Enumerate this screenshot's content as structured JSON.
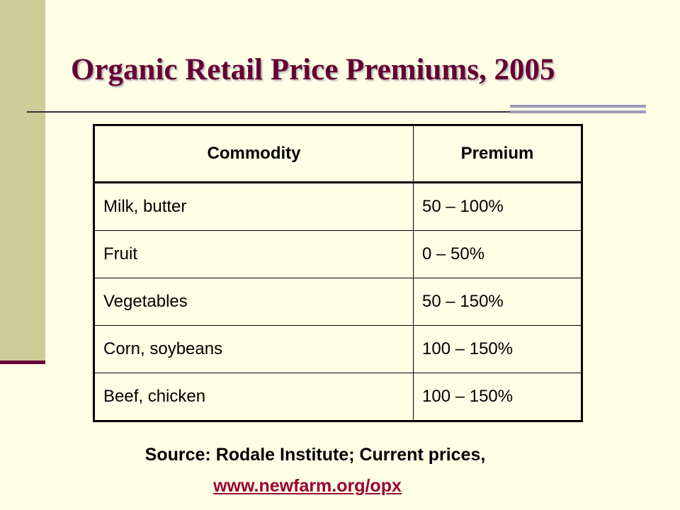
{
  "slide": {
    "title": "Organic Retail Price Premiums, 2005"
  },
  "table": {
    "headers": [
      "Commodity",
      "Premium"
    ],
    "rows": [
      [
        "Milk, butter",
        "50 – 100%"
      ],
      [
        "Fruit",
        "0 – 50%"
      ],
      [
        "Vegetables",
        "50 – 150%"
      ],
      [
        "Corn, soybeans",
        "100 – 150%"
      ],
      [
        "Beef, chicken",
        "100 – 150%"
      ]
    ]
  },
  "source": {
    "text": "Source: Rodale Institute;  Current prices,",
    "link": "www.newfarm.org/opx"
  },
  "colors": {
    "title": "#660033",
    "background": "#ffffe6",
    "sidebar": "#cccc99",
    "link": "#990033"
  }
}
